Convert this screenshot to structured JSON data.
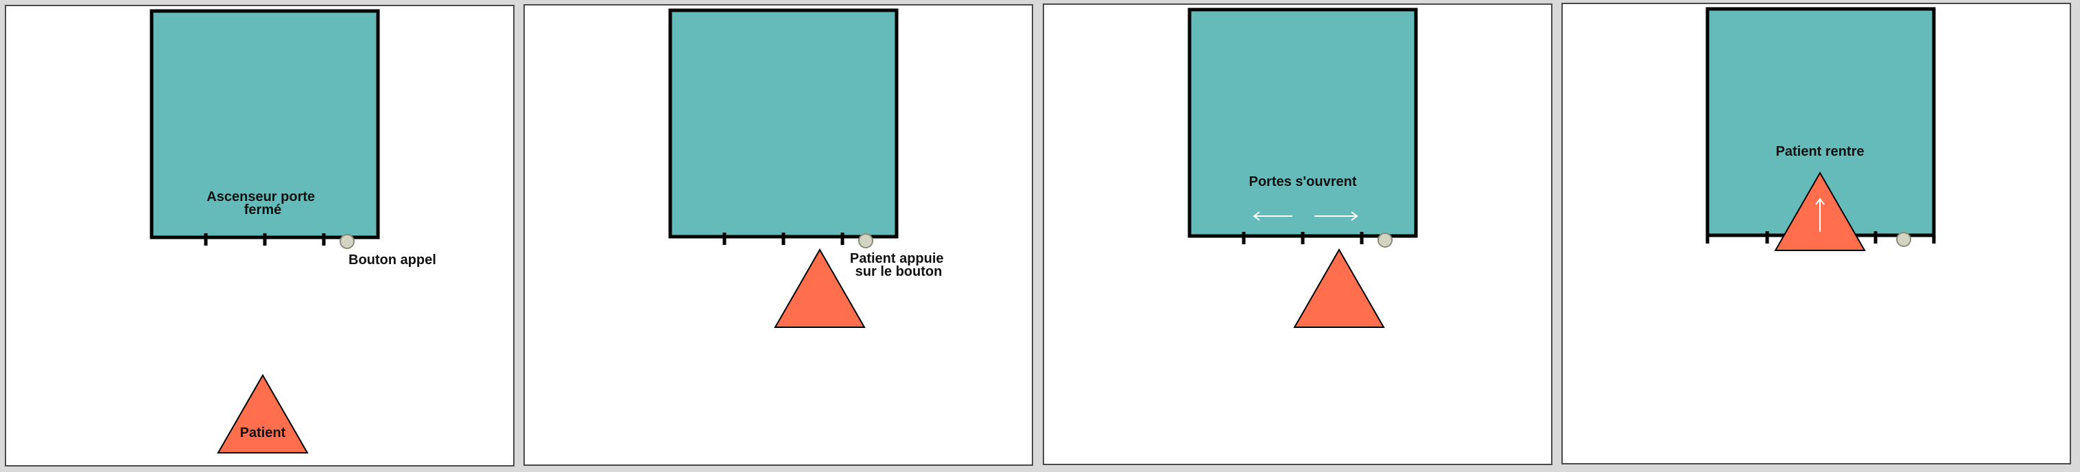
{
  "panels": [
    {
      "label_elevator": [
        "Ascenseur porte",
        "fermé"
      ],
      "label_button": [
        "Bouton appel"
      ],
      "label_patient": [
        "Patient"
      ]
    },
    {
      "label_button": [
        "Patient appuie",
        "sur le bouton"
      ]
    },
    {
      "label_elevator": [
        "Portes s'ouvrent"
      ]
    },
    {
      "label_elevator": [
        "Patient rentre"
      ]
    }
  ],
  "colors": {
    "elevator": "#64bbb9",
    "patient": "#ff6e4d",
    "call_button": "#d4d4c2",
    "door_arrows": "#ffffff"
  },
  "icons": [
    "call-button-icon",
    "arrow-left-icon",
    "arrow-right-icon",
    "arrow-up-icon"
  ]
}
